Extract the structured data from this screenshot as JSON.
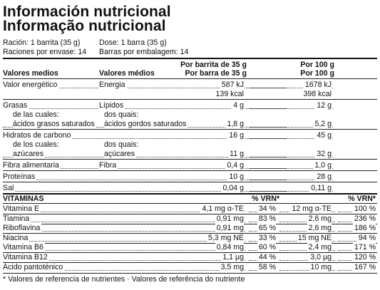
{
  "titles": {
    "es": "Información nutricional",
    "pt": "Informação nutricional"
  },
  "serving": {
    "es_serving": "Ración: 1 barrita (35 g)",
    "pt_serving": "Dose: 1 barra (35 g)",
    "es_per_pack": "Raciones por envase: 14",
    "pt_per_pack": "Barras por embalagem: 14"
  },
  "header": {
    "col_es_label": "Valores medios",
    "col_pt_label": "Valores médios",
    "per_bar_es": "Por barrita de 35 g",
    "per_bar_pt": "Por barra de 35 g",
    "per_100_es": "Por 100 g",
    "per_100_pt": "Por 100 g"
  },
  "nutrients": [
    {
      "es": "Valor energético",
      "pt": "Energia",
      "bar": "587 kJ",
      "p100": "1678 kJ"
    },
    {
      "es": "",
      "pt": "",
      "bar": "139 kcal",
      "p100": "398 kcal"
    },
    {
      "es": "Grasas",
      "pt": "Lípidos",
      "bar": "4 g",
      "p100": "12 g"
    },
    {
      "es": "de las cuales:",
      "pt": "dos quais:",
      "bar": "",
      "p100": ""
    },
    {
      "es": "ácidos grasos saturados",
      "pt": "ácidos gordos saturados",
      "bar": "1,8 g",
      "p100": "5,2 g"
    },
    {
      "es": "Hidratos de carbono",
      "pt": "",
      "bar": "16 g",
      "p100": "45 g"
    },
    {
      "es": "de los cuales:",
      "pt": "dos quais:",
      "bar": "",
      "p100": ""
    },
    {
      "es": "azúcares",
      "pt": "açúcares",
      "bar": "11 g",
      "p100": "32 g"
    },
    {
      "es": "Fibra alimentaria",
      "pt": "Fibra",
      "bar": "0,4 g",
      "p100": "1,0 g"
    },
    {
      "es": "Proteínas",
      "pt": "",
      "bar": "10 g",
      "p100": "28 g"
    },
    {
      "es": "Sal",
      "pt": "",
      "bar": "0,04 g",
      "p100": "0,11 g"
    }
  ],
  "vitamins_header": {
    "label": "VITAMINAS",
    "vrn1": "% VRN*",
    "vrn2": "% VRN*"
  },
  "vitamins": [
    {
      "name": "Vitamina E",
      "bar": "4,1 mg α-TE",
      "vrn_bar": "34 %",
      "p100": "12 mg α-TE",
      "vrn_100": "100 %"
    },
    {
      "name": "Tiamina",
      "bar": "0,91 mg",
      "vrn_bar": "83 %",
      "p100": "2,6 mg",
      "vrn_100": "236 %"
    },
    {
      "name": "Riboflavina",
      "bar": "0,91 mg",
      "vrn_bar": "65 %",
      "p100": "2,6 mg",
      "vrn_100": "186 %"
    },
    {
      "name": "Niacina",
      "bar": "5,3 mg NE",
      "vrn_bar": "33 %",
      "p100": "15 mg NE",
      "vrn_100": "94 %"
    },
    {
      "name": "Vitamina B6",
      "bar": "0,84 mg",
      "vrn_bar": "60 %",
      "p100": "2,4 mg",
      "vrn_100": "171 %"
    },
    {
      "name": "Vitamina B12",
      "bar": "1,1 µg",
      "vrn_bar": "44 %",
      "p100": "3,0 µg",
      "vrn_100": "120 %"
    },
    {
      "name": "Ácido pantoténico",
      "bar": "3,5 mg",
      "vrn_bar": "58 %",
      "p100": "10 mg",
      "vrn_100": "167 %"
    }
  ],
  "footnote": "* Valores de referencia de nutrientes · Valores de referência do nutriente"
}
